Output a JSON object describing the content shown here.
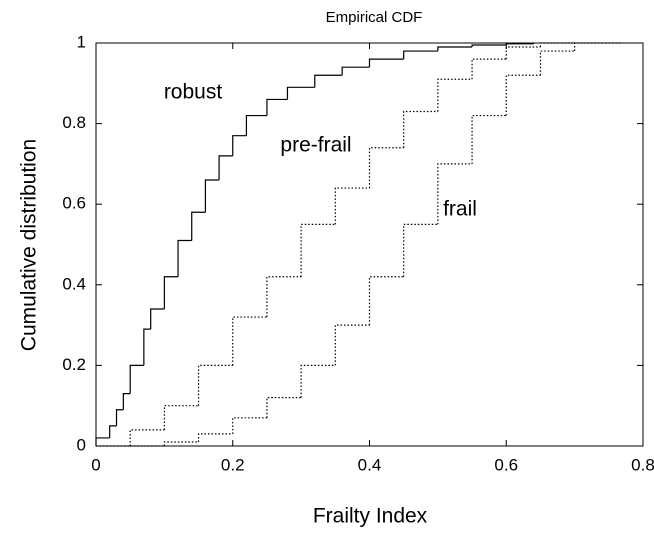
{
  "chart_data": {
    "type": "step",
    "title": "Empirical CDF",
    "x_label": "Frailty Index",
    "y_label": "Cumulative distribution",
    "xlim": [
      0,
      0.8
    ],
    "ylim": [
      0,
      1
    ],
    "xticks": [
      0,
      0.2,
      0.4,
      0.6,
      0.8
    ],
    "yticks": [
      0,
      0.2,
      0.4,
      0.6,
      0.8,
      1
    ],
    "grid": false,
    "series": [
      {
        "name": "robust",
        "color": "#000000",
        "style": "solid",
        "x": [
          0,
          0.02,
          0.03,
          0.04,
          0.05,
          0.07,
          0.08,
          0.1,
          0.12,
          0.14,
          0.16,
          0.18,
          0.2,
          0.22,
          0.25,
          0.28,
          0.32,
          0.36,
          0.4,
          0.45,
          0.5,
          0.55,
          0.6,
          0.64
        ],
        "values": [
          0.02,
          0.05,
          0.09,
          0.13,
          0.2,
          0.29,
          0.34,
          0.42,
          0.51,
          0.58,
          0.66,
          0.72,
          0.77,
          0.82,
          0.86,
          0.89,
          0.92,
          0.94,
          0.96,
          0.98,
          0.99,
          0.995,
          0.998,
          1.0
        ]
      },
      {
        "name": "pre-frail",
        "color": "#000000",
        "style": "dotted",
        "x": [
          0,
          0.05,
          0.1,
          0.15,
          0.2,
          0.25,
          0.3,
          0.35,
          0.4,
          0.45,
          0.5,
          0.55,
          0.6,
          0.65,
          0.7
        ],
        "values": [
          0,
          0.04,
          0.1,
          0.2,
          0.32,
          0.42,
          0.55,
          0.64,
          0.74,
          0.83,
          0.91,
          0.96,
          0.99,
          1.0,
          1.0
        ]
      },
      {
        "name": "frail",
        "color": "#000000",
        "style": "dotted",
        "x": [
          0.05,
          0.1,
          0.15,
          0.2,
          0.25,
          0.3,
          0.35,
          0.4,
          0.45,
          0.5,
          0.55,
          0.6,
          0.65,
          0.7,
          0.77
        ],
        "values": [
          0,
          0.01,
          0.03,
          0.07,
          0.12,
          0.2,
          0.3,
          0.42,
          0.55,
          0.7,
          0.82,
          0.92,
          0.98,
          1.0,
          1.0
        ]
      }
    ]
  }
}
